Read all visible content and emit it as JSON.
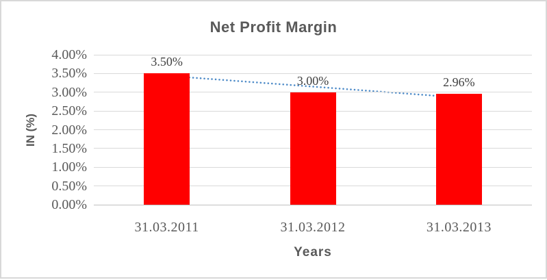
{
  "window": {
    "background": "#FFFFFF",
    "border_color": "#D8D8D8"
  },
  "chart_data": {
    "type": "bar",
    "title": "Net Profit Margin",
    "xlabel": "Years",
    "ylabel": "IN (%)",
    "categories": [
      "31.03.2011",
      "31.03.2012",
      "31.03.2013"
    ],
    "series": [
      {
        "name": "Net Profit Margin",
        "values": [
          3.5,
          3.0,
          2.96
        ]
      }
    ],
    "data_labels": [
      "3.50%",
      "3.00%",
      "2.96%"
    ],
    "ylim": [
      0,
      4
    ],
    "yticks": [
      {
        "value": 0.0,
        "label": "0.00%"
      },
      {
        "value": 0.5,
        "label": "0.50%"
      },
      {
        "value": 1.0,
        "label": "1.00%"
      },
      {
        "value": 1.5,
        "label": "1.50%"
      },
      {
        "value": 2.0,
        "label": "2.00%"
      },
      {
        "value": 2.5,
        "label": "2.50%"
      },
      {
        "value": 3.0,
        "label": "3.00%"
      },
      {
        "value": 3.5,
        "label": "3.50%"
      },
      {
        "value": 4.0,
        "label": "4.00%"
      }
    ],
    "grid": true,
    "legend": false,
    "colors": {
      "bar": "#FF0000",
      "grid": "#D9D9D9",
      "axis_line": "#BFBFBF",
      "text": "#595959",
      "data_label": "#404040",
      "trendline": "#4E8BC8"
    },
    "trendline": {
      "type": "linear",
      "style": "dotted",
      "start_value": 3.44,
      "end_value": 2.86
    }
  }
}
